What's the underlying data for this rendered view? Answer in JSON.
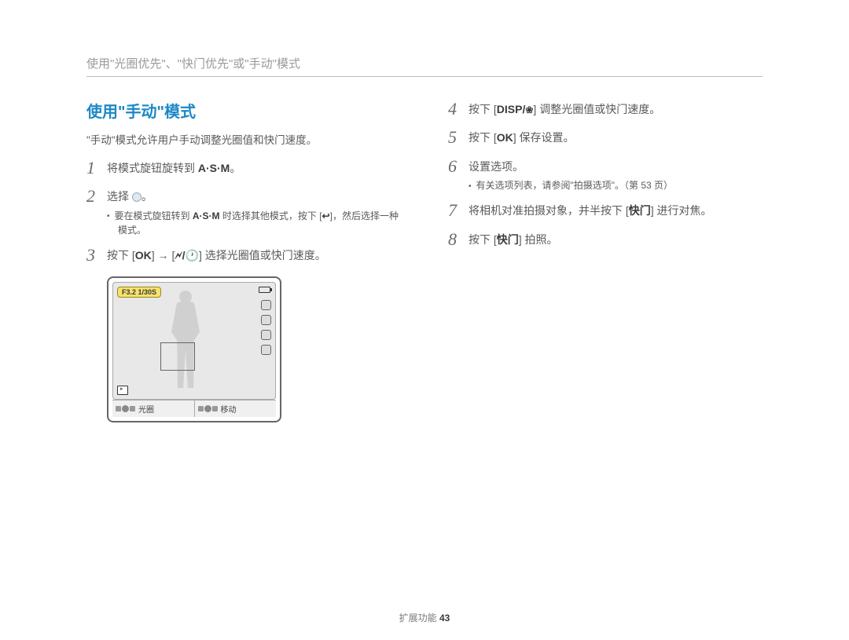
{
  "header": {
    "breadcrumb": "使用\"光圈优先\"、\"快门优先\"或\"手动\"模式"
  },
  "left": {
    "title": "使用\"手动\"模式",
    "intro": "\"手动\"模式允许用户手动调整光圈值和快门速度。",
    "steps": {
      "s1_pre": "将模式旋钮旋转到 ",
      "s1_bold": "A·S·M",
      "s1_post": "。",
      "s2_pre": "选择 ",
      "s2_post": "。",
      "s2_note_pre": "要在模式旋钮转到 ",
      "s2_note_bold": "A·S·M",
      "s2_note_mid": " 时选择其他模式，按下 [",
      "s2_note_post": "]，然后选择一种模式。",
      "s3_pre": "按下 [",
      "s3_ok": "OK",
      "s3_mid": "] → [",
      "s3_icons": "🗲/🕐",
      "s3_post": "] 选择光圈值或快门速度。"
    },
    "lcd": {
      "pill": "F3.2 1/30S",
      "bar_left": "光圈",
      "bar_right": "移动"
    }
  },
  "right": {
    "steps": {
      "s4_pre": "按下 [",
      "s4_disp": "DISP/",
      "s4_flower": "❀",
      "s4_post": "] 调整光圈值或快门速度。",
      "s5_pre": "按下 [",
      "s5_ok": "OK",
      "s5_post": "] 保存设置。",
      "s6": "设置选项。",
      "s6_note": "有关选项列表，请参阅\"拍摄选项\"。（第 53 页）",
      "s7_pre": "将相机对准拍摄对象，并半按下 [",
      "s7_btn": "快门",
      "s7_post": "] 进行对焦。",
      "s8_pre": "按下 [",
      "s8_btn": "快门",
      "s8_post": "] 拍照。"
    }
  },
  "footer": {
    "section": "扩展功能 ",
    "page": "43"
  }
}
